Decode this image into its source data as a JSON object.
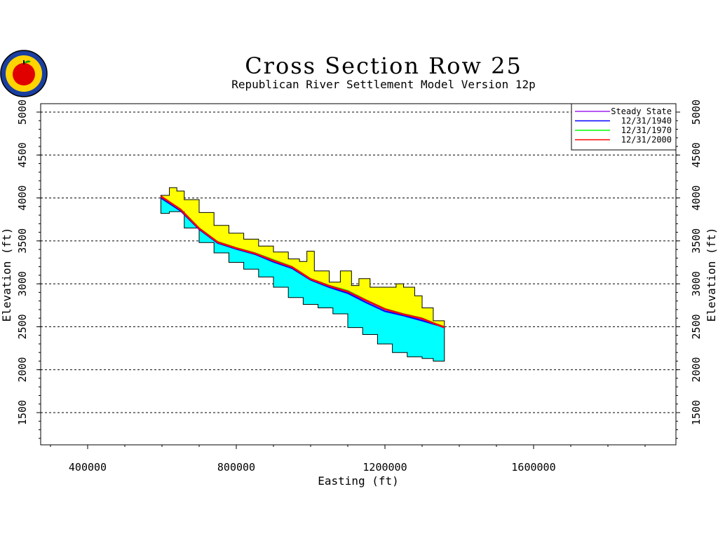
{
  "chart_data": {
    "type": "area",
    "title": "Cross Section Row 25",
    "subtitle": "Republican River Settlement Model Version 12p",
    "xlabel": "Easting (ft)",
    "ylabel": "Elevation (ft)",
    "xlim": [
      270000,
      1900000
    ],
    "ylim": [
      1150000,
      5300
    ],
    "x_ticks": [
      400000,
      800000,
      1200000,
      1600000
    ],
    "x_tick_labels": [
      "400000",
      "800000",
      "1200000",
      "1600000"
    ],
    "y_ticks": [
      1500,
      2000,
      2500,
      3000,
      3500,
      4000,
      4500,
      5000
    ],
    "y_tick_labels": [
      "1500",
      "2000",
      "2500",
      "3000",
      "3500",
      "4000",
      "4500",
      "5000"
    ],
    "grid": "horizontal-dashed",
    "legend_position": "top-right",
    "colors": {
      "unsaturated": "#ffff00",
      "saturated": "#00ffff",
      "steady_state": "#a020f0",
      "y1940": "#0000ff",
      "y1970": "#00ff00",
      "y2000": "#ff0000",
      "grid": "#000000"
    },
    "land_surface": {
      "x": [
        597000,
        620000,
        640000,
        660000,
        700000,
        740000,
        780000,
        820000,
        860000,
        900000,
        940000,
        970000,
        990000,
        1010000,
        1050000,
        1080000,
        1110000,
        1130000,
        1160000,
        1190000,
        1230000,
        1250000,
        1280000,
        1300000,
        1330000,
        1360000
      ],
      "y": [
        4030,
        4120,
        4080,
        3980,
        3830,
        3680,
        3590,
        3520,
        3440,
        3370,
        3290,
        3260,
        3380,
        3150,
        3020,
        3150,
        2980,
        3060,
        2960,
        2960,
        3000,
        2960,
        2860,
        2720,
        2570,
        2550
      ]
    },
    "aquifer_bottom": {
      "x": [
        597000,
        620000,
        660000,
        700000,
        740000,
        780000,
        820000,
        860000,
        900000,
        940000,
        980000,
        1020000,
        1060000,
        1100000,
        1140000,
        1180000,
        1220000,
        1260000,
        1300000,
        1330000,
        1360000
      ],
      "y": [
        3820,
        3840,
        3650,
        3480,
        3360,
        3250,
        3170,
        3080,
        2960,
        2840,
        2760,
        2720,
        2650,
        2490,
        2410,
        2300,
        2200,
        2150,
        2130,
        2100,
        2100
      ]
    },
    "x": [
      597000,
      650000,
      700000,
      750000,
      800000,
      850000,
      900000,
      950000,
      1000000,
      1050000,
      1100000,
      1150000,
      1200000,
      1250000,
      1300000,
      1340000,
      1360000
    ],
    "series": [
      {
        "name": "Steady State",
        "color": "#a020f0",
        "values": [
          4010,
          3860,
          3640,
          3480,
          3410,
          3350,
          3260,
          3190,
          3050,
          2970,
          2900,
          2800,
          2700,
          2640,
          2580,
          2530,
          2490
        ]
      },
      {
        "name": "12/31/1940",
        "color": "#0000ff",
        "values": [
          4000,
          3850,
          3635,
          3475,
          3405,
          3345,
          3255,
          3180,
          3045,
          2960,
          2890,
          2780,
          2680,
          2630,
          2570,
          2520,
          2490
        ]
      },
      {
        "name": "12/31/1970",
        "color": "#00ff00",
        "values": [
          4015,
          3870,
          3650,
          3490,
          3420,
          3360,
          3280,
          3200,
          3060,
          2980,
          2920,
          2810,
          2710,
          2650,
          2600,
          2530,
          2500
        ]
      },
      {
        "name": "12/31/2000",
        "color": "#ff0000",
        "values": [
          4020,
          3865,
          3645,
          3485,
          3415,
          3355,
          3270,
          3195,
          3055,
          2975,
          2910,
          2805,
          2705,
          2645,
          2595,
          2525,
          2495
        ]
      }
    ]
  }
}
